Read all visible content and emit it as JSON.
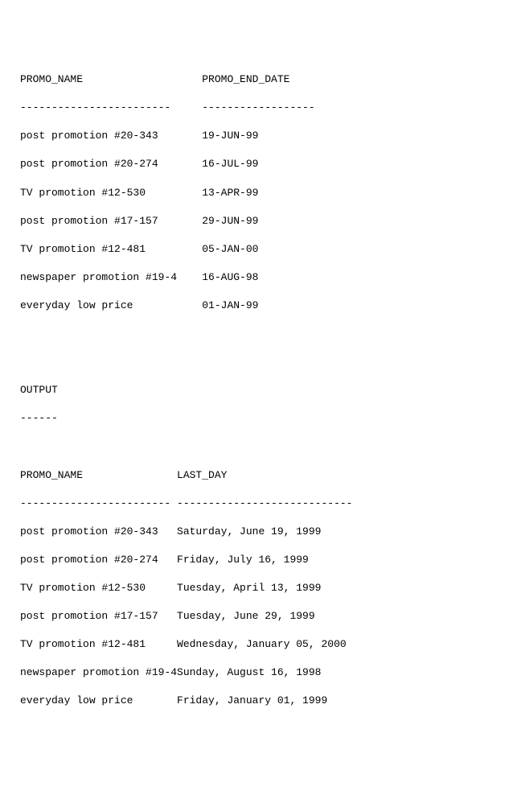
{
  "font": {
    "family": "Courier New, monospace",
    "size_pt": 10,
    "color": "#000000",
    "background": "#ffffff"
  },
  "table1": {
    "type": "table",
    "col1_width": 29,
    "header1": "PROMO_NAME",
    "header2": "PROMO_END_DATE",
    "dash1": "------------------------",
    "dash2": "------------------",
    "rows": [
      {
        "c1": "post promotion #20-343",
        "c2": "19-JUN-99"
      },
      {
        "c1": "post promotion #20-274",
        "c2": "16-JUL-99"
      },
      {
        "c1": "TV promotion #12-530",
        "c2": "13-APR-99"
      },
      {
        "c1": "post promotion #17-157",
        "c2": "29-JUN-99"
      },
      {
        "c1": "TV promotion #12-481",
        "c2": "05-JAN-00"
      },
      {
        "c1": "newspaper promotion #19-4",
        "c2": "16-AUG-98"
      },
      {
        "c1": "everyday low price",
        "c2": "01-JAN-99"
      }
    ]
  },
  "output_label": "OUTPUT",
  "output_dash": "------",
  "table2": {
    "type": "table",
    "col1_width": 25,
    "header1": "PROMO_NAME",
    "header2": "LAST_DAY",
    "dash1": "------------------------",
    "dash2": "----------------------------",
    "rows": [
      {
        "c1": "post promotion #20-343",
        "c2": "Saturday, June 19, 1999"
      },
      {
        "c1": "post promotion #20-274",
        "c2": "Friday, July 16, 1999"
      },
      {
        "c1": "TV promotion #12-530",
        "c2": "Tuesday, April 13, 1999"
      },
      {
        "c1": "post promotion #17-157",
        "c2": "Tuesday, June 29, 1999"
      },
      {
        "c1": "TV promotion #12-481",
        "c2": "Wednesday, January 05, 2000"
      },
      {
        "c1": "newspaper promotion #19-4",
        "c2": "Sunday, August 16, 1998"
      },
      {
        "c1": "everyday low price",
        "c2": "Friday, January 01, 1999"
      }
    ]
  }
}
